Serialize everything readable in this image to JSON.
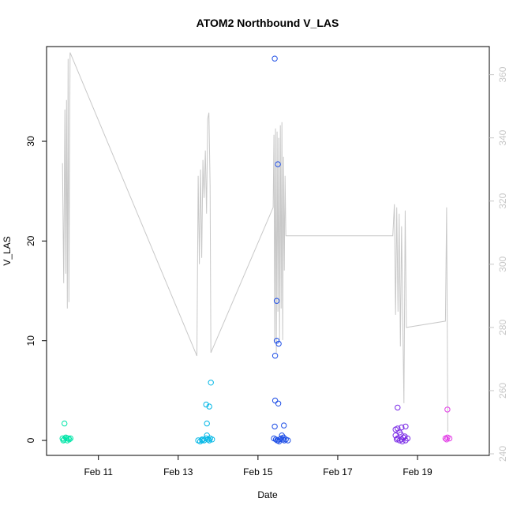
{
  "chart_data": {
    "type": "scatter",
    "title": "ATOM2 Northbound V_LAS",
    "xlabel": "Date",
    "ylabel": "V_LAS",
    "ylabel_right": "",
    "xlim": [
      9.7,
      20.8
    ],
    "ylim": [
      -1.5,
      39.5
    ],
    "y2lim": [
      239.5,
      368.9
    ],
    "x_ticks": [
      {
        "value": 11,
        "label": "Feb 11"
      },
      {
        "value": 13,
        "label": "Feb 13"
      },
      {
        "value": 15,
        "label": "Feb 15"
      },
      {
        "value": 17,
        "label": "Feb 17"
      },
      {
        "value": 19,
        "label": "Feb 19"
      }
    ],
    "y_ticks": [
      0,
      10,
      20,
      30
    ],
    "y2_ticks": [
      240,
      260,
      280,
      300,
      320,
      340,
      360
    ],
    "grid": false,
    "legend": "none",
    "colors": {
      "feb10": "#00e5a8",
      "feb13": "#00b7e6",
      "feb15": "#1f4fe6",
      "feb18": "#7a2be6",
      "feb19": "#e23be6",
      "line": "#c8c8c8"
    },
    "series": [
      {
        "group": "feb10",
        "points": [
          [
            10.1,
            0.2
          ],
          [
            10.14,
            0.1
          ],
          [
            10.18,
            0.3
          ],
          [
            10.2,
            0.2
          ],
          [
            10.22,
            0.0
          ],
          [
            10.25,
            0.2
          ],
          [
            10.27,
            0.1
          ],
          [
            10.15,
            1.7
          ],
          [
            10.12,
            0.0
          ],
          [
            10.3,
            0.2
          ]
        ]
      },
      {
        "group": "feb13",
        "points": [
          [
            13.5,
            0.0
          ],
          [
            13.55,
            -0.1
          ],
          [
            13.6,
            0.1
          ],
          [
            13.65,
            0.0
          ],
          [
            13.7,
            0.2
          ],
          [
            13.72,
            0.5
          ],
          [
            13.75,
            0.1
          ],
          [
            13.78,
            0.0
          ],
          [
            13.8,
            0.2
          ],
          [
            13.85,
            0.1
          ],
          [
            13.72,
            1.7
          ],
          [
            13.7,
            3.6
          ],
          [
            13.78,
            3.4
          ],
          [
            13.82,
            5.8
          ],
          [
            13.6,
            0.0
          ]
        ]
      },
      {
        "group": "feb15",
        "points": [
          [
            15.42,
            38.3
          ],
          [
            15.5,
            27.7
          ],
          [
            15.47,
            14.0
          ],
          [
            15.47,
            10.0
          ],
          [
            15.52,
            9.7
          ],
          [
            15.43,
            8.5
          ],
          [
            15.43,
            4.0
          ],
          [
            15.51,
            3.7
          ],
          [
            15.65,
            1.5
          ],
          [
            15.42,
            1.4
          ],
          [
            15.4,
            0.2
          ],
          [
            15.45,
            0.1
          ],
          [
            15.5,
            0.0
          ],
          [
            15.55,
            0.1
          ],
          [
            15.6,
            0.5
          ],
          [
            15.62,
            0.1
          ],
          [
            15.66,
            0.0
          ],
          [
            15.7,
            0.1
          ],
          [
            15.75,
            0.0
          ],
          [
            15.58,
            0.2
          ],
          [
            15.48,
            0.0
          ],
          [
            15.53,
            -0.1
          ],
          [
            15.64,
            0.3
          ]
        ]
      },
      {
        "group": "feb18",
        "points": [
          [
            18.5,
            3.3
          ],
          [
            18.45,
            1.1
          ],
          [
            18.5,
            1.2
          ],
          [
            18.55,
            0.8
          ],
          [
            18.6,
            1.3
          ],
          [
            18.7,
            1.4
          ],
          [
            18.45,
            0.5
          ],
          [
            18.5,
            0.2
          ],
          [
            18.55,
            0.0
          ],
          [
            18.6,
            0.1
          ],
          [
            18.65,
            0.3
          ],
          [
            18.7,
            0.0
          ],
          [
            18.75,
            0.2
          ],
          [
            18.58,
            0.6
          ],
          [
            18.48,
            0.1
          ],
          [
            18.62,
            -0.1
          ],
          [
            18.68,
            0.4
          ]
        ]
      },
      {
        "group": "feb19",
        "points": [
          [
            19.75,
            3.1
          ],
          [
            19.7,
            0.2
          ],
          [
            19.75,
            0.3
          ],
          [
            19.8,
            0.2
          ],
          [
            19.73,
            0.1
          ]
        ]
      }
    ],
    "line_series": {
      "axis": "right",
      "points": [
        [
          10.1,
          332
        ],
        [
          10.13,
          294
        ],
        [
          10.16,
          349
        ],
        [
          10.18,
          297
        ],
        [
          10.2,
          352
        ],
        [
          10.22,
          286
        ],
        [
          10.24,
          365
        ],
        [
          10.26,
          288
        ],
        [
          10.29,
          367
        ],
        [
          13.47,
          271
        ],
        [
          13.5,
          328
        ],
        [
          13.53,
          300
        ],
        [
          13.56,
          330
        ],
        [
          13.59,
          302
        ],
        [
          13.62,
          333
        ],
        [
          13.65,
          321
        ],
        [
          13.68,
          336
        ],
        [
          13.71,
          316
        ],
        [
          13.74,
          346
        ],
        [
          13.77,
          348
        ],
        [
          13.8,
          325
        ],
        [
          13.82,
          272
        ],
        [
          15.38,
          318
        ],
        [
          15.4,
          341
        ],
        [
          15.42,
          275
        ],
        [
          15.44,
          343
        ],
        [
          15.46,
          272
        ],
        [
          15.48,
          342
        ],
        [
          15.5,
          285
        ],
        [
          15.52,
          340
        ],
        [
          15.54,
          276
        ],
        [
          15.56,
          344
        ],
        [
          15.58,
          286
        ],
        [
          15.6,
          345
        ],
        [
          15.62,
          276
        ],
        [
          15.64,
          334
        ],
        [
          15.66,
          298
        ],
        [
          15.68,
          328
        ],
        [
          15.7,
          309
        ],
        [
          18.38,
          309
        ],
        [
          18.42,
          319
        ],
        [
          18.45,
          284
        ],
        [
          18.48,
          318
        ],
        [
          18.51,
          285
        ],
        [
          18.54,
          316
        ],
        [
          18.57,
          274
        ],
        [
          18.6,
          312
        ],
        [
          18.63,
          283
        ],
        [
          18.66,
          256
        ],
        [
          18.69,
          317
        ],
        [
          18.72,
          280
        ],
        [
          19.7,
          282
        ],
        [
          19.73,
          318
        ],
        [
          19.76,
          247
        ]
      ]
    }
  }
}
